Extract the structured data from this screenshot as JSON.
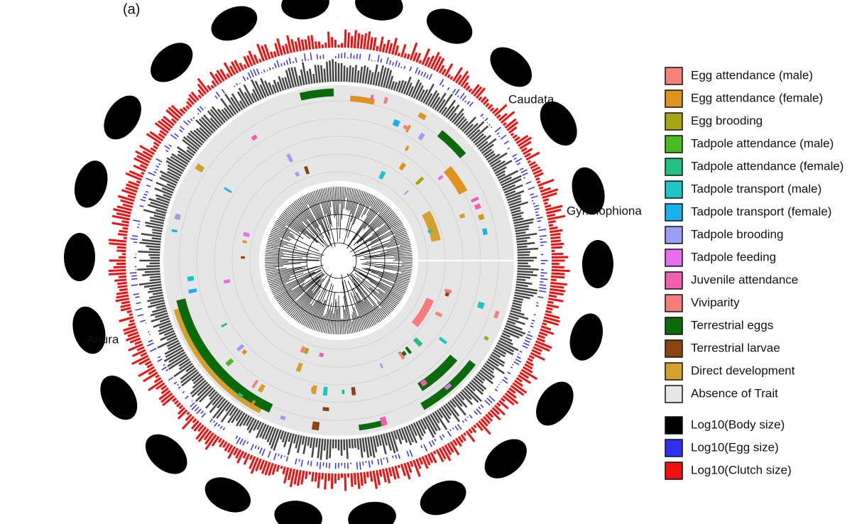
{
  "panel_label": "(a)",
  "clades": [
    {
      "label": "Caudata"
    },
    {
      "label": "Gymnophiona"
    },
    {
      "label": "Anura"
    }
  ],
  "legend": {
    "items": [
      {
        "label": "Egg attendance (male)",
        "color": "#f4837a"
      },
      {
        "label": "Egg attendance (female)",
        "color": "#e0921e"
      },
      {
        "label": "Egg brooding",
        "color": "#a6a614"
      },
      {
        "label": "Tadpole attendance (male)",
        "color": "#4cba22"
      },
      {
        "label": "Tadpole attendance (female)",
        "color": "#20c080"
      },
      {
        "label": "Tadpole transport (male)",
        "color": "#1fc4c4"
      },
      {
        "label": "Tadpole transport (female)",
        "color": "#19b0ee"
      },
      {
        "label": "Tadpole brooding",
        "color": "#9a9ef5"
      },
      {
        "label": "Tadpole feeding",
        "color": "#e86ef0"
      },
      {
        "label": "Juvenile attendance",
        "color": "#ef5fb0"
      },
      {
        "label": "Viviparity",
        "color": "#f57c7c"
      },
      {
        "label": "Terrestrial eggs",
        "color": "#0b6a0b"
      },
      {
        "label": "Terrestrial larvae",
        "color": "#8b4513"
      },
      {
        "label": "Direct development",
        "color": "#d4a02e"
      },
      {
        "label": "Absence of Trait",
        "color": "#e6e6e6"
      }
    ],
    "size_items": [
      {
        "label": "Log10(Body size)",
        "color": "#000000"
      },
      {
        "label": "Log10(Egg size)",
        "color": "#3030f0"
      },
      {
        "label": "Log10(Clutch size)",
        "color": "#f01010"
      }
    ]
  }
}
